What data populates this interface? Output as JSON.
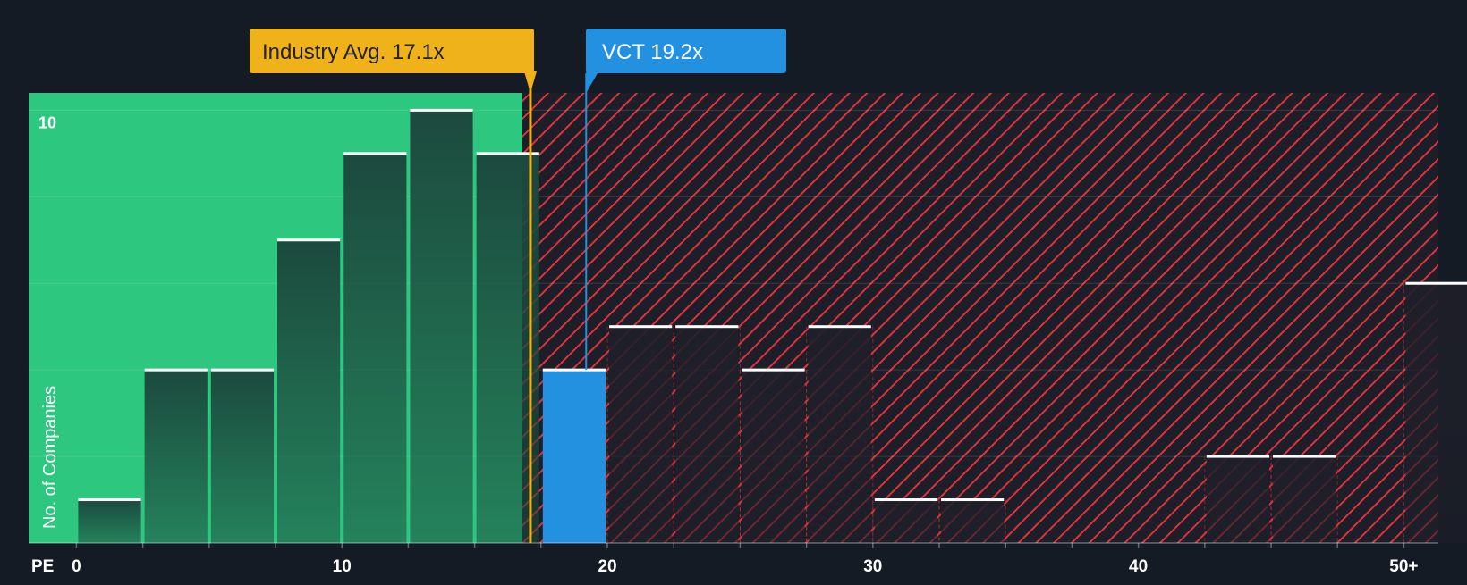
{
  "chart_data": {
    "type": "bar",
    "xlabel": "PE",
    "ylabel": "No. of Companies",
    "x_range": [
      -1.8,
      51.3
    ],
    "ylim": [
      0,
      10.4
    ],
    "x_ticks": [
      {
        "value": 0,
        "label": "0"
      },
      {
        "value": 10,
        "label": "10"
      },
      {
        "value": 20,
        "label": "20"
      },
      {
        "value": 30,
        "label": "30"
      },
      {
        "value": 40,
        "label": "40"
      },
      {
        "value": 50,
        "label": "50+"
      }
    ],
    "y_ticks": [
      {
        "value": 10,
        "label": "10"
      }
    ],
    "bins": [
      {
        "x0": 0.0,
        "x1": 2.5,
        "value": 1
      },
      {
        "x0": 2.5,
        "x1": 5.0,
        "value": 4
      },
      {
        "x0": 5.0,
        "x1": 7.5,
        "value": 4
      },
      {
        "x0": 7.5,
        "x1": 10.0,
        "value": 7
      },
      {
        "x0": 10.0,
        "x1": 12.5,
        "value": 9
      },
      {
        "x0": 12.5,
        "x1": 15.0,
        "value": 10
      },
      {
        "x0": 15.0,
        "x1": 17.5,
        "value": 9
      },
      {
        "x0": 17.5,
        "x1": 20.0,
        "value": 4,
        "highlight": true
      },
      {
        "x0": 20.0,
        "x1": 22.5,
        "value": 5
      },
      {
        "x0": 22.5,
        "x1": 25.0,
        "value": 5
      },
      {
        "x0": 25.0,
        "x1": 27.5,
        "value": 4
      },
      {
        "x0": 27.5,
        "x1": 30.0,
        "value": 5
      },
      {
        "x0": 30.0,
        "x1": 32.5,
        "value": 1
      },
      {
        "x0": 32.5,
        "x1": 35.0,
        "value": 1
      },
      {
        "x0": 42.5,
        "x1": 45.0,
        "value": 2
      },
      {
        "x0": 45.0,
        "x1": 47.5,
        "value": 2
      },
      {
        "x0": 50.0,
        "x1": 52.5,
        "value": 6
      }
    ],
    "fair_zone_end": 16.8,
    "industry_avg": {
      "value": 17.1,
      "label": "Industry Avg. 17.1x"
    },
    "company": {
      "value": 19.2,
      "label": "VCT 19.2x"
    },
    "grid": true,
    "colors": {
      "background": "#151b24",
      "fair_zone": "#2ec77f",
      "bar_dark": "#1c4a3e",
      "overvalued_hatch": "#d8343d",
      "company_bar": "#2390e0",
      "industry_label": "#f0b21a",
      "bar_cap": "#ffffff"
    }
  }
}
